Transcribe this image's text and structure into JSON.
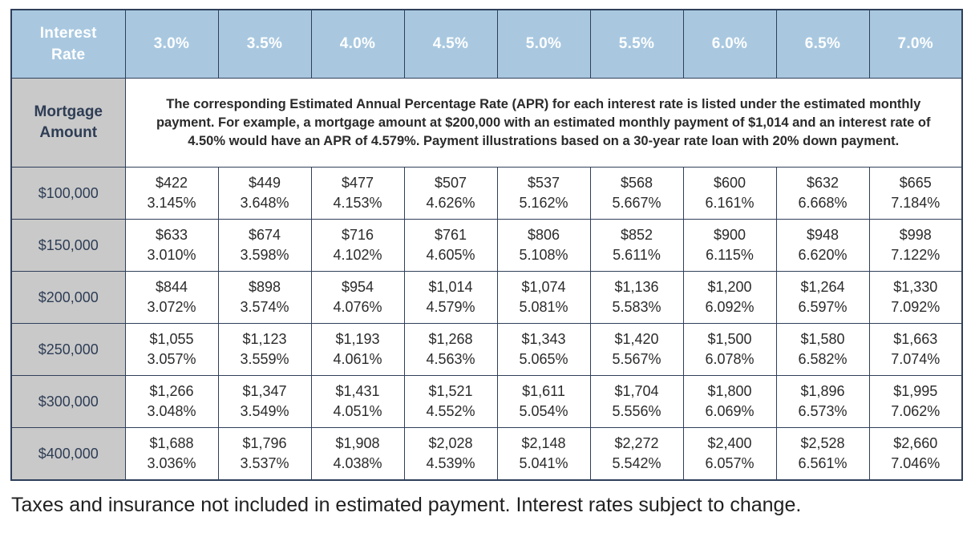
{
  "header": {
    "corner_label_line1": "Interest",
    "corner_label_line2": "Rate",
    "rates": [
      "3.0%",
      "3.5%",
      "4.0%",
      "4.5%",
      "5.0%",
      "5.5%",
      "6.0%",
      "6.5%",
      "7.0%"
    ]
  },
  "description": {
    "label_line1": "Mortgage",
    "label_line2": "Amount",
    "text": "The corresponding Estimated Annual Percentage Rate (APR) for each interest rate is listed under the estimated monthly payment. For example, a mortgage amount at $200,000 with an estimated monthly payment of $1,014 and an interest rate of 4.50% would have an APR of 4.579%. Payment illustrations based on a 30-year rate loan with 20% down payment."
  },
  "rows": [
    {
      "amount": "$100,000",
      "cells": [
        {
          "payment": "$422",
          "apr": "3.145%"
        },
        {
          "payment": "$449",
          "apr": "3.648%"
        },
        {
          "payment": "$477",
          "apr": "4.153%"
        },
        {
          "payment": "$507",
          "apr": "4.626%"
        },
        {
          "payment": "$537",
          "apr": "5.162%"
        },
        {
          "payment": "$568",
          "apr": "5.667%"
        },
        {
          "payment": "$600",
          "apr": "6.161%"
        },
        {
          "payment": "$632",
          "apr": "6.668%"
        },
        {
          "payment": "$665",
          "apr": "7.184%"
        }
      ]
    },
    {
      "amount": "$150,000",
      "cells": [
        {
          "payment": "$633",
          "apr": "3.010%"
        },
        {
          "payment": "$674",
          "apr": "3.598%"
        },
        {
          "payment": "$716",
          "apr": "4.102%"
        },
        {
          "payment": "$761",
          "apr": "4.605%"
        },
        {
          "payment": "$806",
          "apr": "5.108%"
        },
        {
          "payment": "$852",
          "apr": "5.611%"
        },
        {
          "payment": "$900",
          "apr": "6.115%"
        },
        {
          "payment": "$948",
          "apr": "6.620%"
        },
        {
          "payment": "$998",
          "apr": "7.122%"
        }
      ]
    },
    {
      "amount": "$200,000",
      "cells": [
        {
          "payment": "$844",
          "apr": "3.072%"
        },
        {
          "payment": "$898",
          "apr": "3.574%"
        },
        {
          "payment": "$954",
          "apr": "4.076%"
        },
        {
          "payment": "$1,014",
          "apr": "4.579%"
        },
        {
          "payment": "$1,074",
          "apr": "5.081%"
        },
        {
          "payment": "$1,136",
          "apr": "5.583%"
        },
        {
          "payment": "$1,200",
          "apr": "6.092%"
        },
        {
          "payment": "$1,264",
          "apr": "6.597%"
        },
        {
          "payment": "$1,330",
          "apr": "7.092%"
        }
      ]
    },
    {
      "amount": "$250,000",
      "cells": [
        {
          "payment": "$1,055",
          "apr": "3.057%"
        },
        {
          "payment": "$1,123",
          "apr": "3.559%"
        },
        {
          "payment": "$1,193",
          "apr": "4.061%"
        },
        {
          "payment": "$1,268",
          "apr": "4.563%"
        },
        {
          "payment": "$1,343",
          "apr": "5.065%"
        },
        {
          "payment": "$1,420",
          "apr": "5.567%"
        },
        {
          "payment": "$1,500",
          "apr": "6.078%"
        },
        {
          "payment": "$1,580",
          "apr": "6.582%"
        },
        {
          "payment": "$1,663",
          "apr": "7.074%"
        }
      ]
    },
    {
      "amount": "$300,000",
      "cells": [
        {
          "payment": "$1,266",
          "apr": "3.048%"
        },
        {
          "payment": "$1,347",
          "apr": "3.549%"
        },
        {
          "payment": "$1,431",
          "apr": "4.051%"
        },
        {
          "payment": "$1,521",
          "apr": "4.552%"
        },
        {
          "payment": "$1,611",
          "apr": "5.054%"
        },
        {
          "payment": "$1,704",
          "apr": "5.556%"
        },
        {
          "payment": "$1,800",
          "apr": "6.069%"
        },
        {
          "payment": "$1,896",
          "apr": "6.573%"
        },
        {
          "payment": "$1,995",
          "apr": "7.062%"
        }
      ]
    },
    {
      "amount": "$400,000",
      "cells": [
        {
          "payment": "$1,688",
          "apr": "3.036%"
        },
        {
          "payment": "$1,796",
          "apr": "3.537%"
        },
        {
          "payment": "$1,908",
          "apr": "4.038%"
        },
        {
          "payment": "$2,028",
          "apr": "4.539%"
        },
        {
          "payment": "$2,148",
          "apr": "5.041%"
        },
        {
          "payment": "$2,272",
          "apr": "5.542%"
        },
        {
          "payment": "$2,400",
          "apr": "6.057%"
        },
        {
          "payment": "$2,528",
          "apr": "6.561%"
        },
        {
          "payment": "$2,660",
          "apr": "7.046%"
        }
      ]
    }
  ],
  "footnote": "Taxes and insurance not included in estimated payment. Interest rates subject to change.",
  "colors": {
    "header_bg": "#a9c8e0",
    "label_bg": "#c9c9c9",
    "border": "#2f3f5a",
    "label_text": "#2e3d55"
  }
}
